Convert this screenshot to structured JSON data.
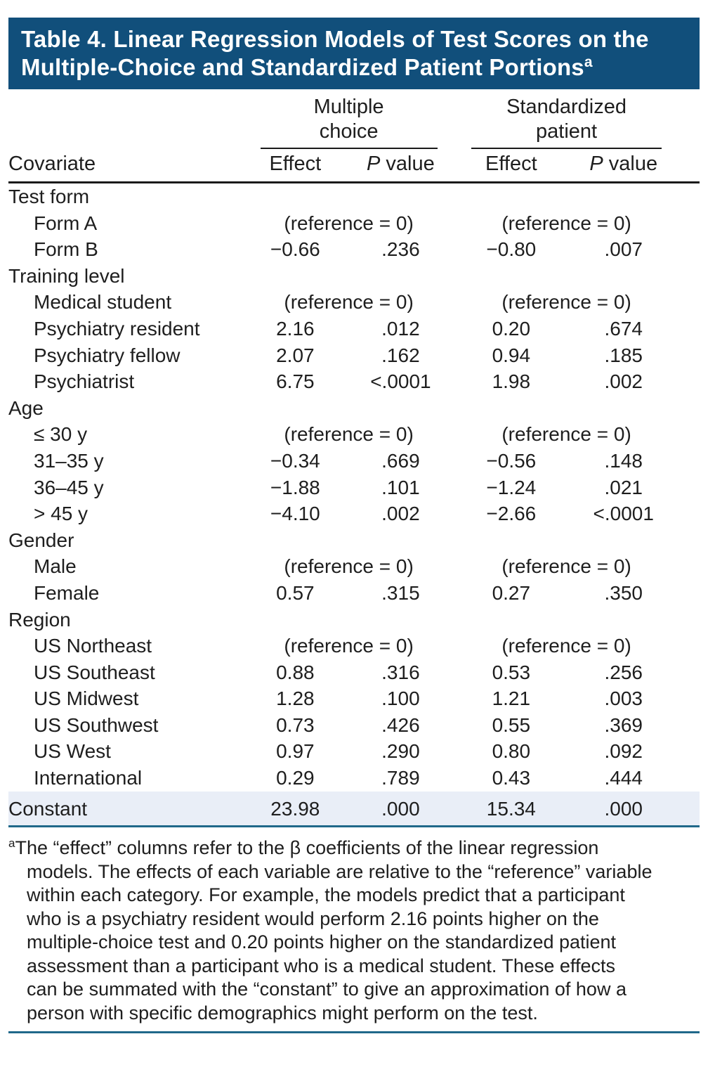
{
  "colors": {
    "banner_bg": "#114f7b",
    "banner_text": "#ffffff",
    "body_text": "#1e1e1e",
    "rule_dark": "#1a1a1a",
    "rule_teal": "#20688a",
    "constant_row_bg": "#e9eef7"
  },
  "title": {
    "line1": "Table 4. Linear Regression Models of Test Scores on the",
    "line2": "Multiple-Choice and Standardized Patient Portions",
    "marker": "a"
  },
  "columns": {
    "covariate_label": "Covariate",
    "effect_label": "Effect",
    "pvalue_p": "P",
    "pvalue_rest": " value",
    "groups": [
      {
        "label": "Multiple\nchoice"
      },
      {
        "label": "Standardized\npatient"
      }
    ]
  },
  "table": {
    "reference_text": "(reference = 0)",
    "rows": [
      {
        "type": "category",
        "label": "Test form"
      },
      {
        "type": "reference",
        "label": "Form A"
      },
      {
        "type": "data",
        "label": "Form B",
        "values": [
          "−0.66",
          ".236",
          "−0.80",
          ".007"
        ]
      },
      {
        "type": "category",
        "label": "Training level"
      },
      {
        "type": "reference",
        "label": "Medical student"
      },
      {
        "type": "data",
        "label": "Psychiatry resident",
        "values": [
          "2.16",
          ".012",
          "0.20",
          ".674"
        ]
      },
      {
        "type": "data",
        "label": "Psychiatry fellow",
        "values": [
          "2.07",
          ".162",
          "0.94",
          ".185"
        ]
      },
      {
        "type": "data",
        "label": "Psychiatrist",
        "values": [
          "6.75",
          "<.0001",
          "1.98",
          ".002"
        ]
      },
      {
        "type": "category",
        "label": "Age"
      },
      {
        "type": "reference",
        "label": "≤ 30 y"
      },
      {
        "type": "data",
        "label": "31–35 y",
        "values": [
          "−0.34",
          ".669",
          "−0.56",
          ".148"
        ]
      },
      {
        "type": "data",
        "label": "36–45 y",
        "values": [
          "−1.88",
          ".101",
          "−1.24",
          ".021"
        ]
      },
      {
        "type": "data",
        "label": "> 45 y",
        "values": [
          "−4.10",
          ".002",
          "−2.66",
          "<.0001"
        ]
      },
      {
        "type": "category",
        "label": "Gender"
      },
      {
        "type": "reference",
        "label": "Male"
      },
      {
        "type": "data",
        "label": "Female",
        "values": [
          "0.57",
          ".315",
          "0.27",
          ".350"
        ]
      },
      {
        "type": "category",
        "label": "Region"
      },
      {
        "type": "reference",
        "label": "US Northeast"
      },
      {
        "type": "data",
        "label": "US Southeast",
        "values": [
          "0.88",
          ".316",
          "0.53",
          ".256"
        ]
      },
      {
        "type": "data",
        "label": "US Midwest",
        "values": [
          "1.28",
          ".100",
          "1.21",
          ".003"
        ]
      },
      {
        "type": "data",
        "label": "US Southwest",
        "values": [
          "0.73",
          ".426",
          "0.55",
          ".369"
        ]
      },
      {
        "type": "data",
        "label": "US West",
        "values": [
          "0.97",
          ".290",
          "0.80",
          ".092"
        ]
      },
      {
        "type": "data",
        "label": "International",
        "values": [
          "0.29",
          ".789",
          "0.43",
          ".444"
        ]
      },
      {
        "type": "constant",
        "label": "Constant",
        "values": [
          "23.98",
          ".000",
          "15.34",
          ".000"
        ]
      }
    ]
  },
  "footnote": {
    "marker": "a",
    "lines": [
      "The “effect” columns refer to the β coefficients of the linear regression",
      "models. The effects of each variable are relative to the “reference” variable",
      "within each category. For example, the models predict that a participant",
      "who is a psychiatry resident would perform 2.16 points higher on the",
      "multiple-choice test and 0.20 points higher on the standardized patient",
      "assessment than a participant who is a medical student. These effects",
      "can be summated with the “constant” to give an approximation of how a",
      "person with specific demographics might perform on the test."
    ]
  }
}
